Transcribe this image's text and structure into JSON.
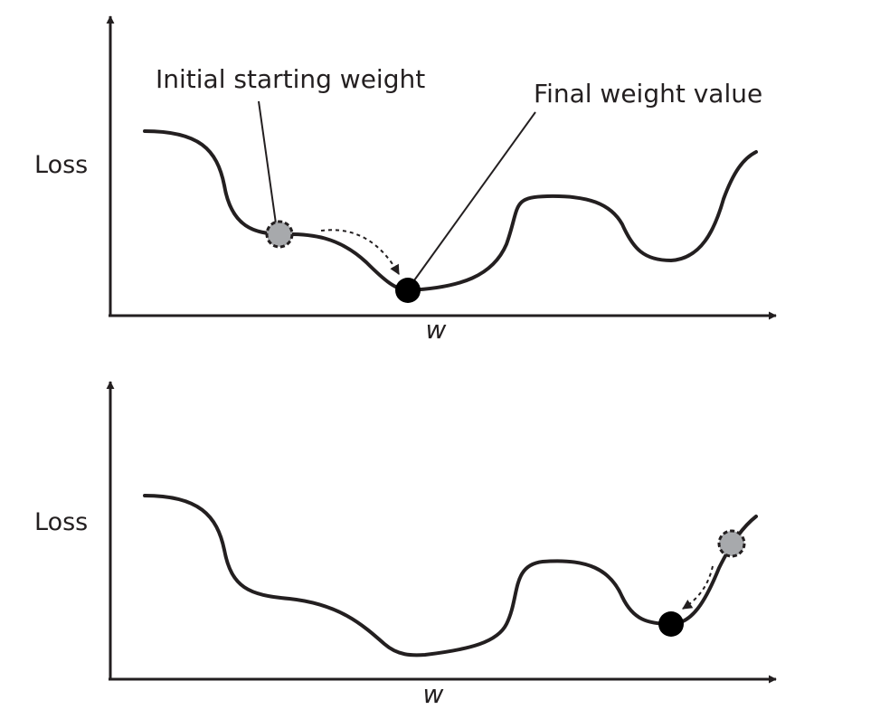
{
  "panels": [
    {
      "ylabel": "Loss",
      "xlabel": "w",
      "annotations": {
        "start": "Initial starting weight",
        "final": "Final weight value"
      }
    },
    {
      "ylabel": "Loss",
      "xlabel": "w"
    }
  ],
  "colors": {
    "curve": "#231f20",
    "start_marker": "#a7a9ac",
    "final_marker": "#000000"
  }
}
